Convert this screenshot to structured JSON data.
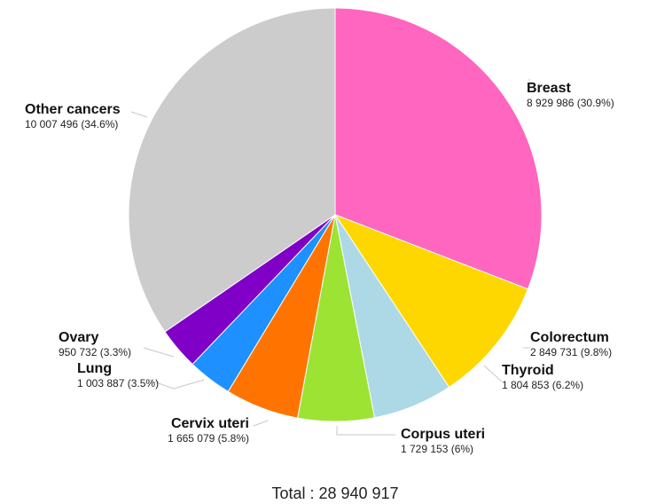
{
  "chart_data": {
    "type": "pie",
    "total_label": "Total : 28 940 917",
    "slices": [
      {
        "name": "Breast",
        "value": 8929986,
        "value_label": "8 929 986 (30.9%)",
        "color": "#ff66bf"
      },
      {
        "name": "Colorectum",
        "value": 2849731,
        "value_label": "2 849 731 (9.8%)",
        "color": "#ffd700"
      },
      {
        "name": "Thyroid",
        "value": 1804853,
        "value_label": "1 804 853 (6.2%)",
        "color": "#add8e6"
      },
      {
        "name": "Corpus uteri",
        "value": 1729153,
        "value_label": "1 729 153 (6%)",
        "color": "#9de334"
      },
      {
        "name": "Cervix uteri",
        "value": 1665079,
        "value_label": "1 665 079 (5.8%)",
        "color": "#ff7400"
      },
      {
        "name": "Lung",
        "value": 1003887,
        "value_label": "1 003 887 (3.5%)",
        "color": "#1e90ff"
      },
      {
        "name": "Ovary",
        "value": 950732,
        "value_label": "950 732 (3.3%)",
        "color": "#8000c8"
      },
      {
        "name": "Other cancers",
        "value": 10007496,
        "value_label": "10 007 496 (34.6%)",
        "color": "#cccccc"
      }
    ]
  }
}
